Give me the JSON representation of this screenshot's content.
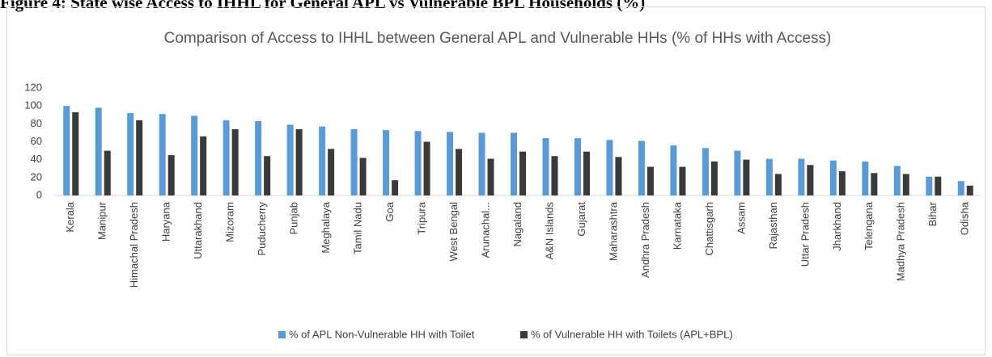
{
  "figure_caption": "Figure 4: State wise Access to IHHL for General APL vs Vulnerable BPL Households (%)",
  "chart_data": {
    "type": "bar",
    "title": "Comparison of Access to IHHL between General APL and Vulnerable HHs (% of HHs with Access)",
    "categories": [
      "Kerala",
      "Manipur",
      "Himachal Pradesh",
      "Haryana",
      "Uttarakhand",
      "Mizoram",
      "Puducherry",
      "Punjab",
      "Meghalaya",
      "Tamil Nadu",
      "Goa",
      "Tripura",
      "West Bengal",
      "Arunachal...",
      "Nagaland",
      "A&N Islands",
      "Gujarat",
      "Maharashtra",
      "Andhra Pradesh",
      "Karnataka",
      "Chattisgarh",
      "Assam",
      "Rajasthan",
      "Uttar Pradesh",
      "Jharkhand",
      "Telengana",
      "Madhya Pradesh",
      "Bihar",
      "Odisha"
    ],
    "series": [
      {
        "name": "% of APL Non-Vulnerable HH with Toilet",
        "color": "#5b9bd5",
        "values": [
          100,
          98,
          92,
          91,
          89,
          84,
          83,
          79,
          77,
          74,
          73,
          72,
          71,
          70,
          70,
          64,
          64,
          62,
          61,
          56,
          53,
          50,
          41,
          41,
          39,
          38,
          33,
          21,
          16
        ]
      },
      {
        "name": "% of Vulnerable HH with Toilets (APL+BPL)",
        "color": "#3a3a3a",
        "values": [
          93,
          50,
          84,
          45,
          66,
          74,
          44,
          74,
          52,
          42,
          17,
          60,
          52,
          41,
          49,
          44,
          49,
          43,
          32,
          32,
          38,
          40,
          24,
          34,
          27,
          25,
          24,
          21,
          11
        ]
      }
    ],
    "ylim": [
      0,
      120
    ],
    "yticks": [
      0,
      20,
      40,
      60,
      80,
      100,
      120
    ],
    "grid": false,
    "legend": "bottom"
  }
}
